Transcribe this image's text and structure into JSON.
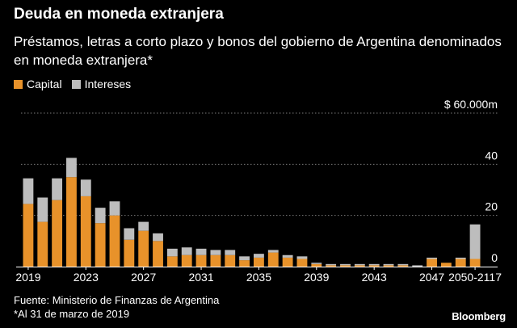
{
  "header": {
    "title": "Deuda en moneda extranjera",
    "subtitle": "Préstamos, letras a corto plazo y bonos del gobierno de Argentina denominados en moneda extranjera*"
  },
  "legend": [
    {
      "label": "Capital",
      "color": "#e8922a"
    },
    {
      "label": "Intereses",
      "color": "#bdbdbd"
    }
  ],
  "footer": {
    "source": "Fuente: Ministerio de Finanzas de Argentina",
    "note": "*Al 31 de marzo de 2019",
    "logo": "Bloomberg"
  },
  "chart_data": {
    "type": "bar",
    "stacked": true,
    "categories": [
      "2019",
      "2020",
      "2021",
      "2022",
      "2023",
      "2024",
      "2025",
      "2026",
      "2027",
      "2028",
      "2029",
      "2030",
      "2031",
      "2032",
      "2033",
      "2034",
      "2035",
      "2036",
      "2037",
      "2038",
      "2039",
      "2040",
      "2041",
      "2042",
      "2043",
      "2044",
      "2045",
      "2046",
      "2047",
      "2048",
      "2049",
      "2050-2117"
    ],
    "x_tick_labels": [
      "2019",
      "2023",
      "2027",
      "2031",
      "2035",
      "2039",
      "2043",
      "2047",
      "2050-2117"
    ],
    "series": [
      {
        "name": "Capital",
        "color": "#e8922a",
        "values": [
          24.5,
          17.5,
          26,
          35,
          27.5,
          17,
          20,
          10.5,
          14,
          10,
          4,
          4.5,
          4.5,
          4.5,
          4.5,
          2.5,
          3.5,
          5.5,
          3.5,
          3,
          1,
          0.5,
          0.5,
          0.5,
          0.5,
          0.5,
          0.5,
          0,
          3,
          1.5,
          3,
          3
        ]
      },
      {
        "name": "Intereses",
        "color": "#bdbdbd",
        "values": [
          10,
          9.5,
          8.5,
          7.5,
          6.5,
          6,
          5.5,
          4.5,
          3.5,
          3,
          3,
          3,
          2.5,
          2,
          2,
          1.5,
          1.5,
          1,
          1,
          1,
          0.5,
          0.5,
          0.5,
          0.5,
          0.5,
          0.5,
          0.5,
          0.5,
          0.5,
          0,
          0.5,
          13.5
        ]
      }
    ],
    "y_ticks": [
      {
        "value": 0,
        "label": "0"
      },
      {
        "value": 20,
        "label": "20"
      },
      {
        "value": 40,
        "label": "40"
      },
      {
        "value": 60,
        "label": "$ 60.000m"
      }
    ],
    "ylim": [
      0,
      60
    ],
    "grid": true,
    "legend_position": "top-left"
  }
}
